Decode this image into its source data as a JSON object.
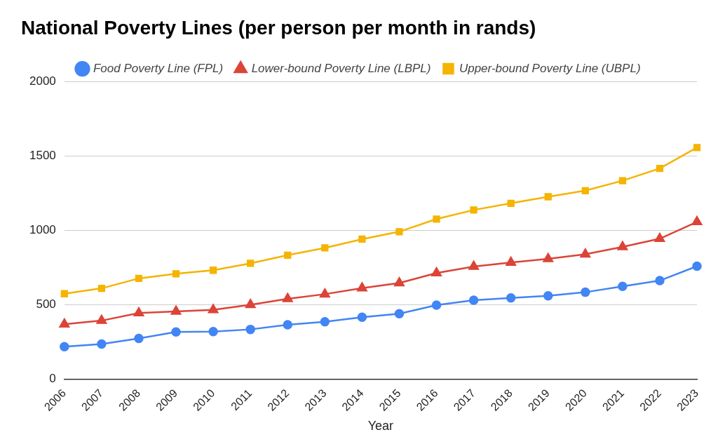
{
  "chart_data": {
    "type": "line",
    "title": "National Poverty Lines (per person per month in rands)",
    "x_label": "Year",
    "categories": [
      "2006",
      "2007",
      "2008",
      "2009",
      "2010",
      "2011",
      "2012",
      "2013",
      "2014",
      "2015",
      "2016",
      "2017",
      "2018",
      "2019",
      "2020",
      "2021",
      "2022",
      "2023"
    ],
    "series": [
      {
        "name": "Food Poverty Line (FPL)",
        "color": "#4285f4",
        "marker": "circle",
        "values": [
          219,
          237,
          274,
          318,
          320,
          335,
          366,
          386,
          417,
          441,
          498,
          531,
          547,
          561,
          585,
          624,
          663,
          760
        ]
      },
      {
        "name": "Lower-bound Poverty Line (LBPL)",
        "color": "#db4437",
        "marker": "triangle",
        "values": [
          370,
          394,
          445,
          456,
          466,
          501,
          541,
          572,
          613,
          647,
          714,
          758,
          785,
          810,
          840,
          890,
          945,
          1058
        ]
      },
      {
        "name": "Upper-bound Poverty Line (UBPL)",
        "color": "#f4b400",
        "marker": "square",
        "values": [
          575,
          611,
          678,
          709,
          733,
          779,
          834,
          883,
          942,
          992,
          1077,
          1138,
          1183,
          1227,
          1268,
          1335,
          1417,
          1558
        ]
      }
    ],
    "ylim": [
      0,
      2000
    ],
    "yticks": [
      0,
      500,
      1000,
      1500,
      2000
    ],
    "grid": true,
    "legend": "top"
  }
}
